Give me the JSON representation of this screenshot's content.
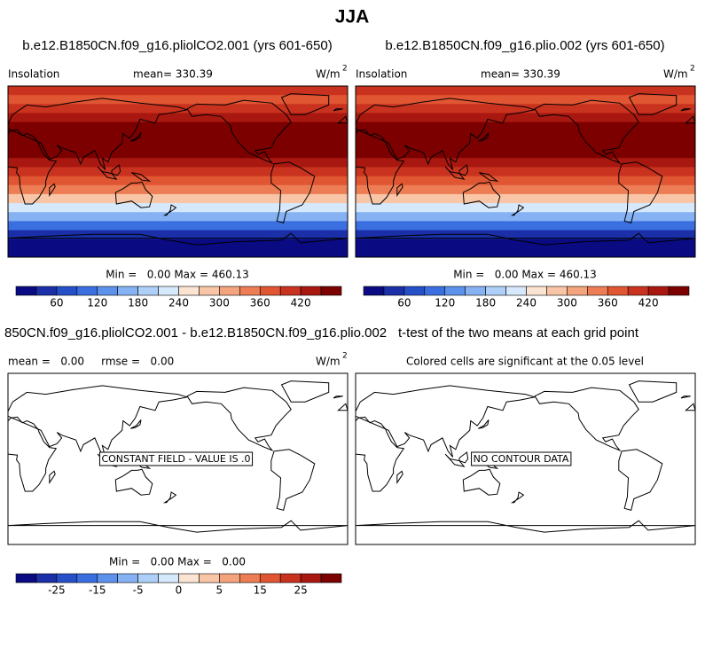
{
  "title": "JJA",
  "palette": [
    "#0a0a82",
    "#1a2fa8",
    "#2550c8",
    "#3b6fe0",
    "#5c91ec",
    "#86b2f4",
    "#aed0f8",
    "#d6e8fb",
    "#fbe4d2",
    "#f8c6a6",
    "#f3a47c",
    "#ec7d55",
    "#e05532",
    "#c9321f",
    "#a81810",
    "#7c0000"
  ],
  "panels": [
    {
      "title": "b.e12.B1850CN.f09_g16.pliolCO2.001 (yrs 601-650)",
      "field": "Insolation",
      "mean": "mean= 330.39",
      "units": "W/m",
      "units_power": "2",
      "stats": "Min =   0.00 Max = 460.13",
      "colorbar_labels": [
        60,
        120,
        180,
        240,
        300,
        360,
        420
      ]
    },
    {
      "title": "b.e12.B1850CN.f09_g16.plio.002 (yrs 601-650)",
      "field": "Insolation",
      "mean": "mean= 330.39",
      "units": "W/m",
      "units_power": "2",
      "stats": "Min =   0.00 Max = 460.13",
      "colorbar_labels": [
        60,
        120,
        180,
        240,
        300,
        360,
        420
      ]
    },
    {
      "title": "850CN.f09_g16.pliolCO2.001 - b.e12.B1850CN.f09_g16.plio.002",
      "mean": "mean =   0.00     rmse =   0.00",
      "units": "W/m",
      "units_power": "2",
      "note": "CONSTANT FIELD - VALUE IS .0",
      "stats": "Min =   0.00 Max =   0.00",
      "colorbar_labels": [
        -25,
        -15,
        -5,
        0,
        5,
        15,
        25
      ]
    },
    {
      "title": "t-test of the two means at each grid point",
      "subtitle": "Colored cells are significant at the 0.05 level",
      "note": "NO CONTOUR DATA"
    }
  ]
}
